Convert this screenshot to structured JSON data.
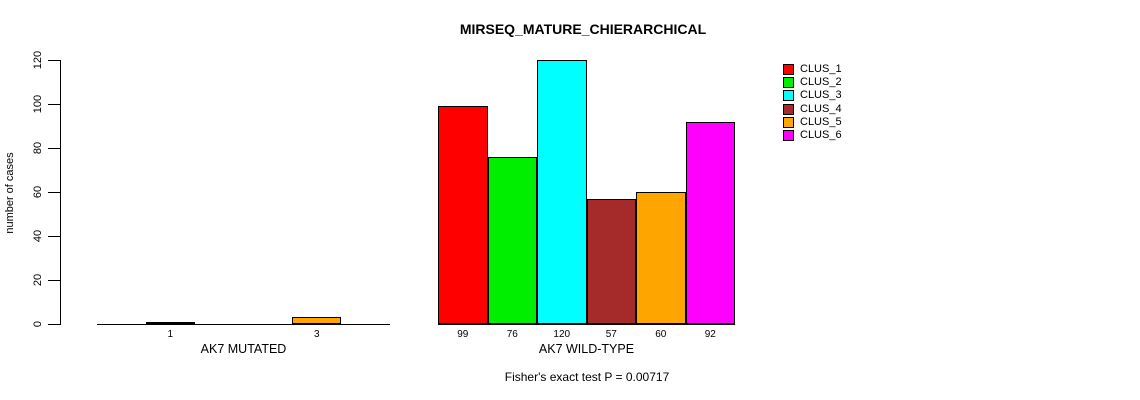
{
  "chart_data": {
    "type": "bar",
    "title": "MIRSEQ_MATURE_CHIERARCHICAL",
    "ylabel": "number of cases",
    "xlabel": "",
    "ylim": [
      0,
      120
    ],
    "yticks": [
      0,
      20,
      40,
      60,
      80,
      100,
      120
    ],
    "grid": false,
    "legend_position": "right",
    "legend": [
      {
        "label": "CLUS_1",
        "color": "#FF0000"
      },
      {
        "label": "CLUS_2",
        "color": "#00EE00"
      },
      {
        "label": "CLUS_3",
        "color": "#00FFFF"
      },
      {
        "label": "CLUS_4",
        "color": "#A52A2A"
      },
      {
        "label": "CLUS_5",
        "color": "#FFA500"
      },
      {
        "label": "CLUS_6",
        "color": "#FF00FF"
      }
    ],
    "groups": [
      {
        "label": "AK7 MUTATED",
        "values": [
          0,
          1,
          0,
          0,
          3,
          0
        ]
      },
      {
        "label": "AK7 WILD-TYPE",
        "values": [
          99,
          76,
          120,
          57,
          60,
          92
        ]
      }
    ],
    "annotation": "Fisher's exact test P = 0.00717"
  }
}
